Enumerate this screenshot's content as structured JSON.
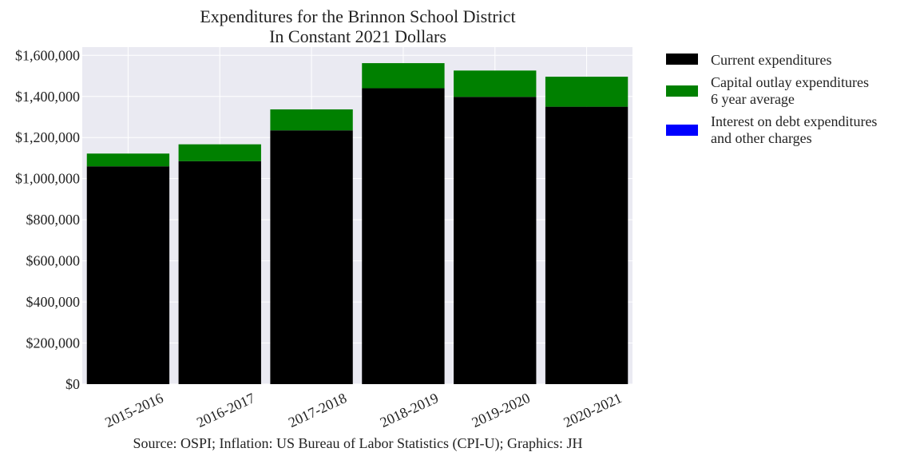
{
  "chart_data": {
    "type": "bar",
    "stacked": true,
    "title": [
      "Expenditures for the Brinnon School District",
      "In Constant 2021 Dollars"
    ],
    "xlabel": "",
    "ylabel": "",
    "categories": [
      "2015-2016",
      "2016-2017",
      "2017-2018",
      "2018-2019",
      "2019-2020",
      "2020-2021"
    ],
    "series": [
      {
        "name": "Current expenditures",
        "color": "#000000",
        "values": [
          1060000,
          1085000,
          1235000,
          1440000,
          1398000,
          1350000
        ]
      },
      {
        "name": "Capital outlay expenditures\n6 year average",
        "color": "#008000",
        "values": [
          62000,
          82000,
          102000,
          122000,
          128000,
          146000
        ]
      },
      {
        "name": "Interest on debt expenditures\nand other charges",
        "color": "#0000ff",
        "values": [
          0,
          0,
          0,
          0,
          0,
          0
        ]
      }
    ],
    "ylim": [
      0,
      1640000
    ],
    "yticks": [
      0,
      200000,
      400000,
      600000,
      800000,
      1000000,
      1200000,
      1400000,
      1600000
    ],
    "ytick_labels": [
      "$0",
      "$200,000",
      "$400,000",
      "$600,000",
      "$800,000",
      "$1,000,000",
      "$1,200,000",
      "$1,400,000",
      "$1,600,000"
    ],
    "grid": true,
    "legend_position": "outside-right-top",
    "source": "Source: OSPI; Inflation: US Bureau of Labor Statistics (CPI-U); Graphics: JH"
  }
}
